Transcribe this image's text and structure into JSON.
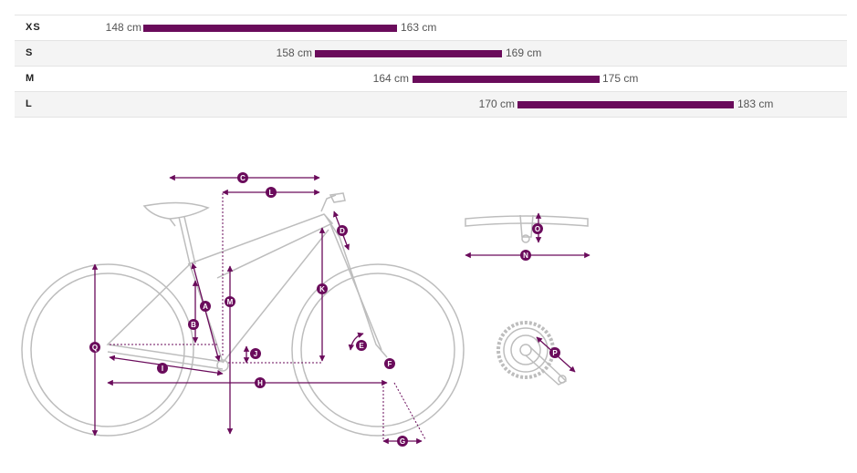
{
  "sizes": [
    {
      "label": "XS",
      "min": "148 cm",
      "max": "163 cm",
      "min_cm": 148,
      "max_cm": 163
    },
    {
      "label": "S",
      "min": "158 cm",
      "max": "169 cm",
      "min_cm": 158,
      "max_cm": 169
    },
    {
      "label": "M",
      "min": "164 cm",
      "max": "175 cm",
      "min_cm": 164,
      "max_cm": 175
    },
    {
      "label": "L",
      "min": "170 cm",
      "max": "183 cm",
      "min_cm": 170,
      "max_cm": 183
    }
  ],
  "colors": {
    "accent": "#6a0b5b",
    "frame": "#bdbdbd",
    "row_alt": "#f4f4f4",
    "border": "#e4e4e4"
  },
  "geometry_labels": {
    "A": "A",
    "B": "B",
    "C": "C",
    "D": "D",
    "E": "E",
    "F": "F",
    "G": "G",
    "H": "H",
    "I": "I",
    "J": "J",
    "K": "K",
    "L": "L",
    "M": "M",
    "N": "N",
    "O": "O",
    "P": "P",
    "Q": "Q"
  }
}
